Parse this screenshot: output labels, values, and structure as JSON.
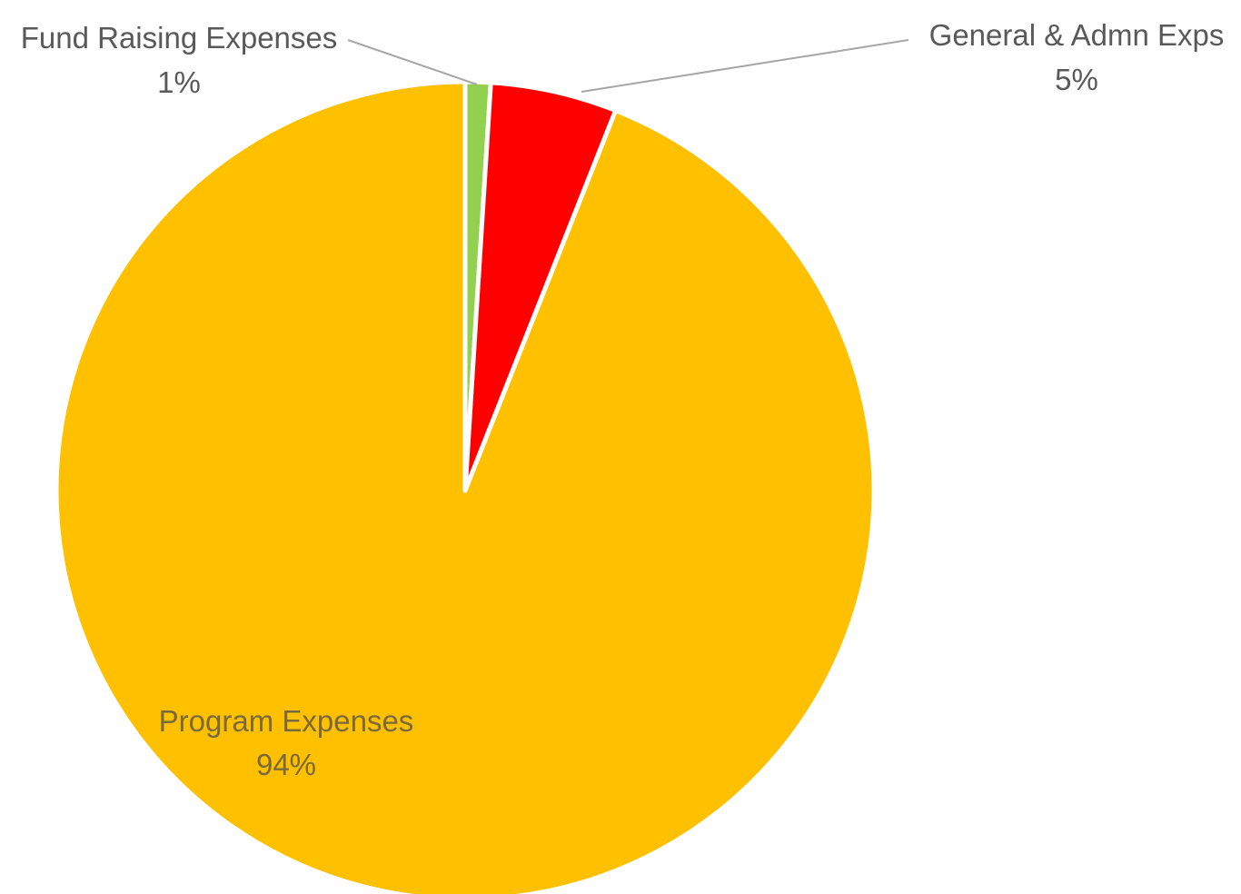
{
  "chart_data": {
    "type": "pie",
    "slices": [
      {
        "label": "Fund Raising Expenses",
        "value": 1,
        "percent_label": "1%",
        "color": "#92d050"
      },
      {
        "label": "General & Admn Exps",
        "value": 5,
        "percent_label": "5%",
        "color": "#ff0000"
      },
      {
        "label": "Program Expenses",
        "value": 94,
        "percent_label": "94%",
        "color": "#ffc000"
      }
    ],
    "start_angle": "top (12 o'clock), clockwise",
    "legend": "none",
    "data_labels": "category name and percent",
    "separator_color": "#ffffff",
    "leader_line_color": "#a6a6a6"
  }
}
